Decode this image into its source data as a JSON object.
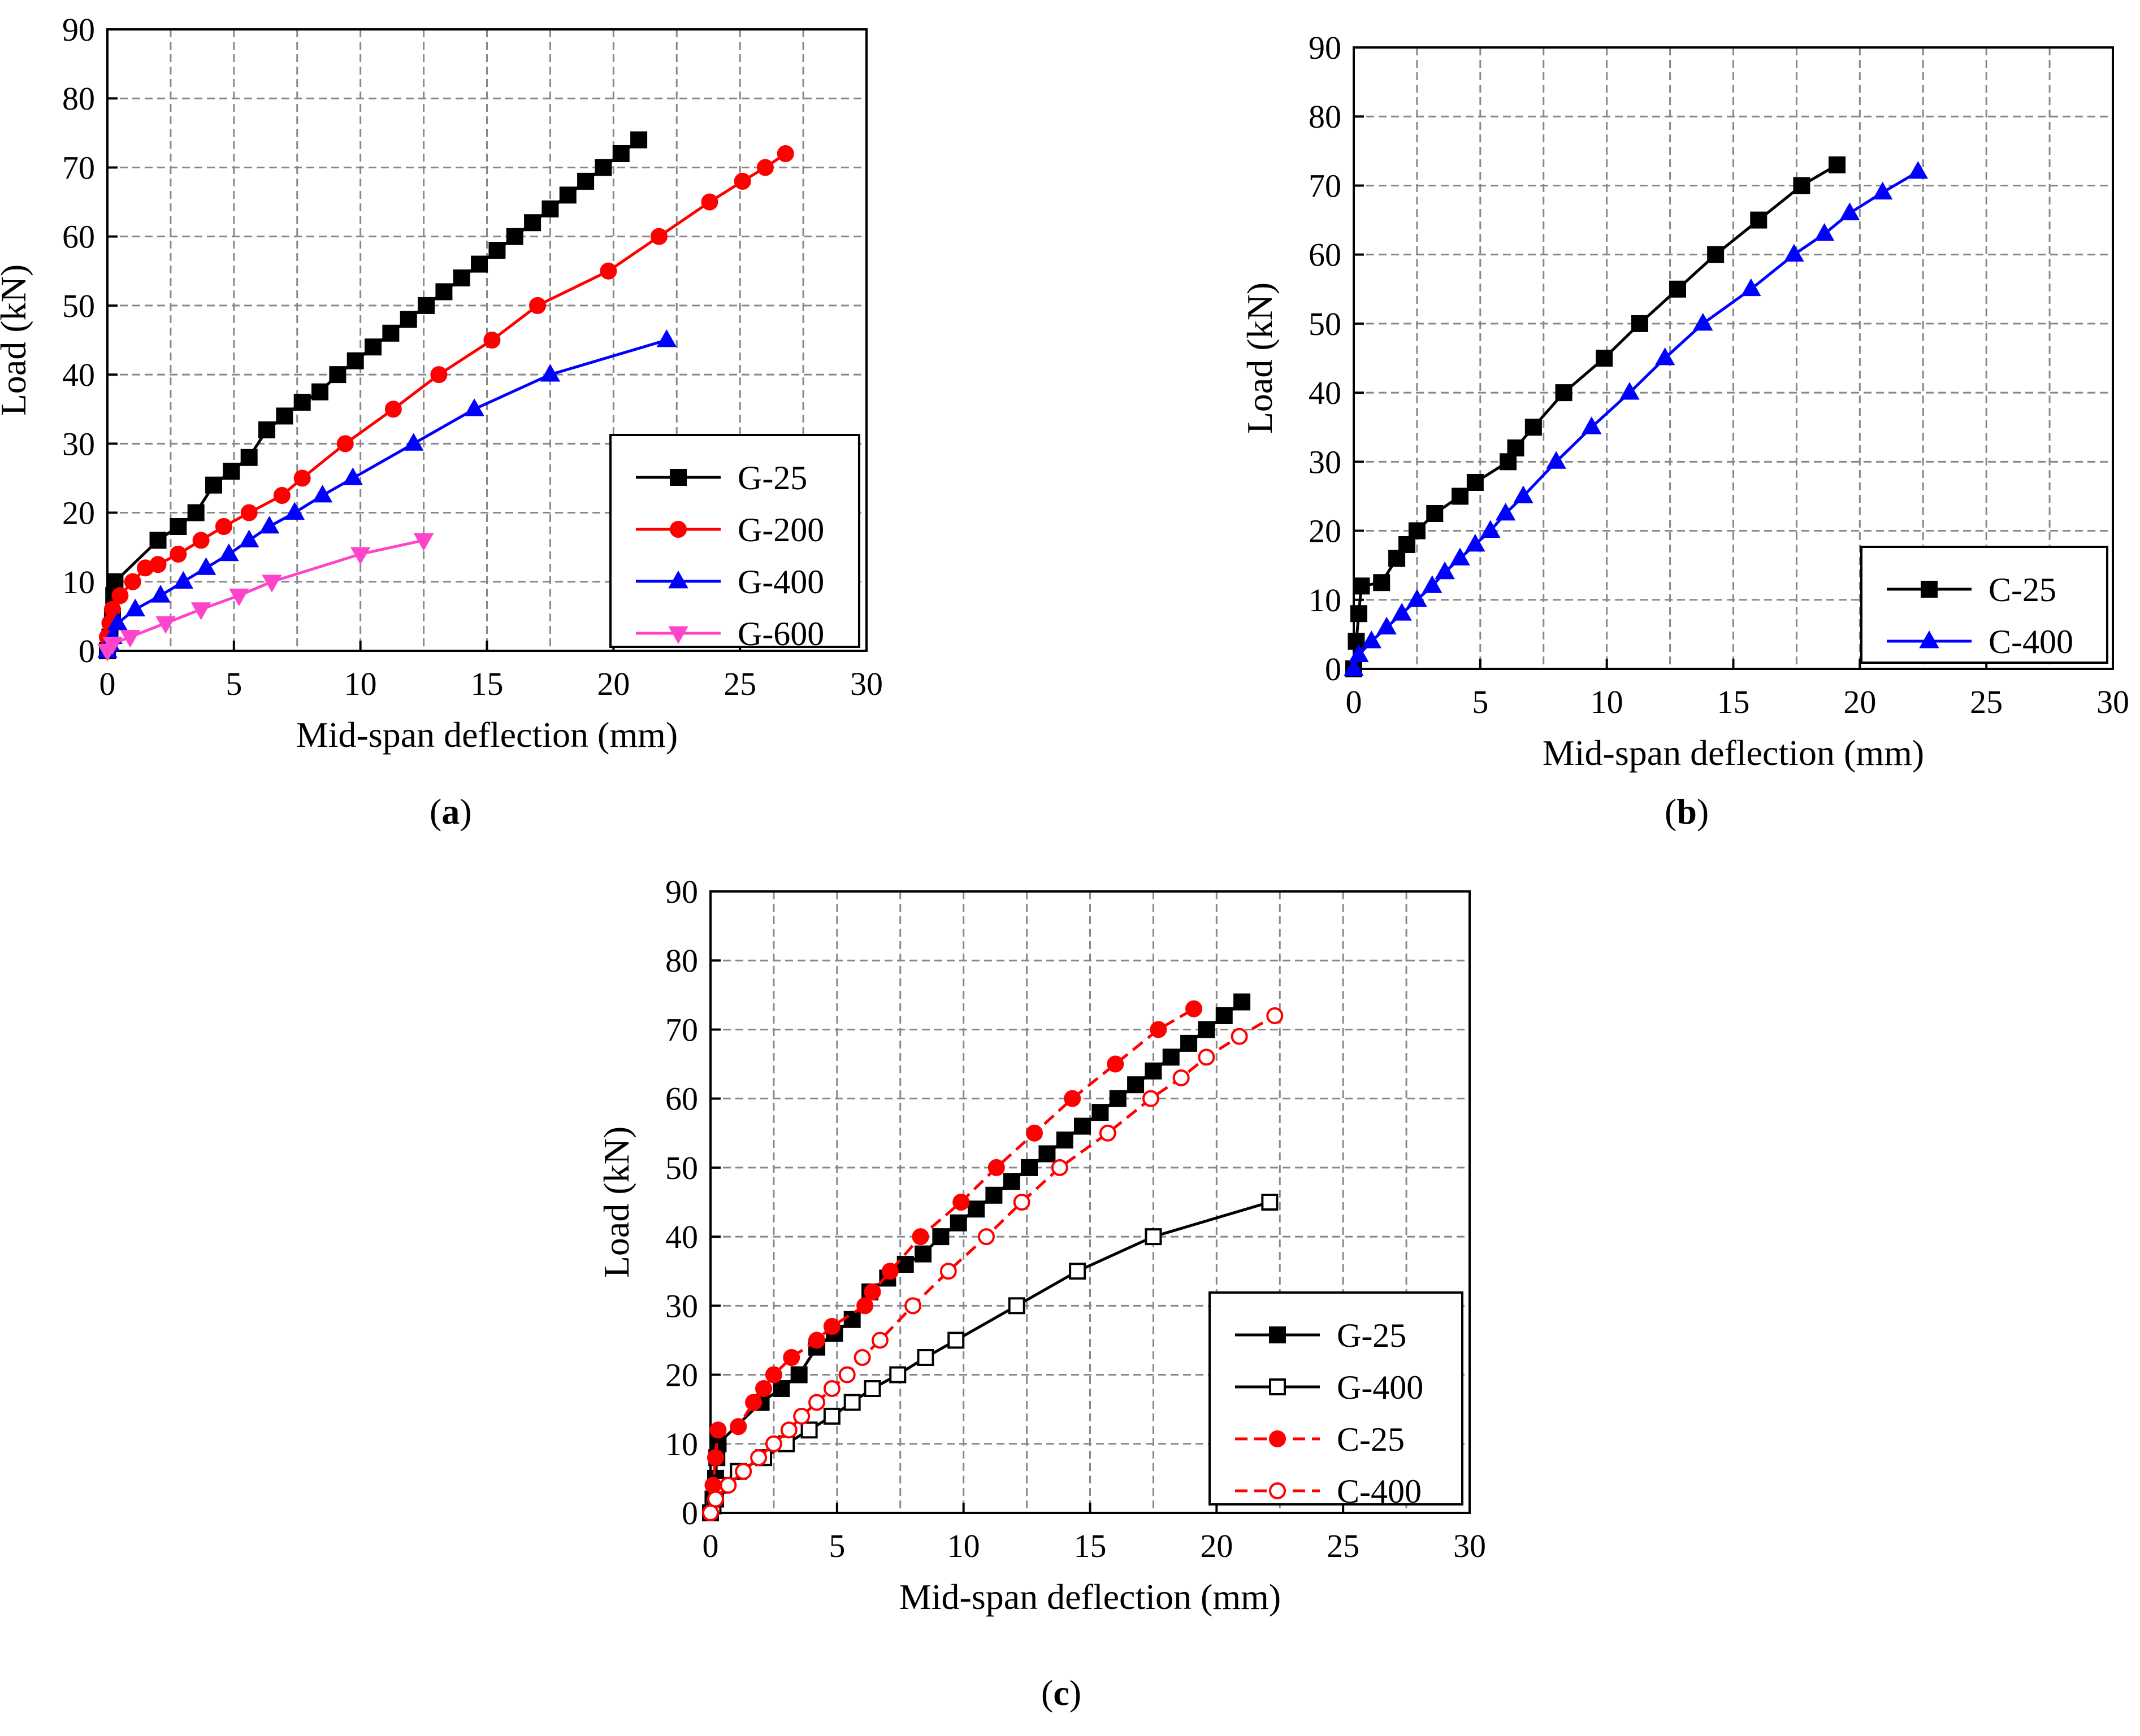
{
  "chart_data": [
    {
      "panel": "a",
      "type": "line",
      "xlabel": "Mid-span deflection (mm)",
      "ylabel": "Load (kN)",
      "xlim": [
        0,
        30
      ],
      "ylim": [
        0,
        90
      ],
      "xticks": [
        "0",
        "5",
        "10",
        "15",
        "20",
        "25",
        "30"
      ],
      "yticks": [
        "0",
        "10",
        "20",
        "30",
        "40",
        "50",
        "60",
        "70",
        "80",
        "90"
      ],
      "grid": true,
      "legend_position": "bottom-right",
      "series": [
        {
          "name": "G-25",
          "color": "#000000",
          "marker": "square",
          "filled": true,
          "dashed": false,
          "x": [
            0,
            0.1,
            0.2,
            0.25,
            0.3,
            2.0,
            2.8,
            3.5,
            4.2,
            4.9,
            5.6,
            6.3,
            7.0,
            7.7,
            8.4,
            9.1,
            9.8,
            10.5,
            11.2,
            11.9,
            12.6,
            13.3,
            14.0,
            14.7,
            15.4,
            16.1,
            16.8,
            17.5,
            18.2,
            18.9,
            19.6,
            20.3,
            21.0
          ],
          "y": [
            0,
            2,
            5,
            8,
            10,
            16,
            18,
            20,
            24,
            26,
            28,
            32,
            34,
            36,
            37.5,
            40,
            42,
            44,
            46,
            48,
            50,
            52,
            54,
            56,
            58,
            60,
            62,
            64,
            66,
            68,
            70,
            72,
            74
          ]
        },
        {
          "name": "G-200",
          "color": "#ff0000",
          "marker": "circle",
          "filled": true,
          "dashed": false,
          "x": [
            0,
            0.1,
            0.2,
            0.5,
            1.0,
            1.5,
            2.0,
            2.8,
            3.7,
            4.6,
            5.6,
            6.9,
            7.7,
            9.4,
            11.3,
            13.1,
            15.2,
            17.0,
            19.8,
            21.8,
            23.8,
            25.1,
            26.0,
            26.8
          ],
          "y": [
            2,
            4,
            6,
            8,
            10,
            12,
            12.5,
            14,
            16,
            18,
            20,
            22.5,
            25,
            30,
            35,
            40,
            45,
            50,
            55,
            60,
            65,
            68,
            70,
            72
          ]
        },
        {
          "name": "G-400",
          "color": "#0000ff",
          "marker": "triangle-up",
          "filled": true,
          "dashed": false,
          "x": [
            0,
            0.1,
            0.2,
            0.4,
            1.1,
            2.1,
            3.0,
            3.9,
            4.8,
            5.6,
            6.4,
            7.4,
            8.5,
            9.7,
            12.1,
            14.5,
            17.5,
            22.1
          ],
          "y": [
            0,
            1,
            2,
            4,
            6,
            8,
            10,
            12,
            14,
            16,
            18,
            20,
            22.5,
            25,
            30,
            35,
            40,
            45
          ]
        },
        {
          "name": "G-600",
          "color": "#ff44cc",
          "marker": "triangle-down",
          "filled": true,
          "dashed": false,
          "x": [
            0,
            0.2,
            0.9,
            2.3,
            3.7,
            5.2,
            6.5,
            10.0,
            12.5
          ],
          "y": [
            0,
            1,
            2,
            4,
            6,
            8,
            10,
            14,
            16
          ]
        }
      ]
    },
    {
      "panel": "b",
      "type": "line",
      "xlabel": "Mid-span deflection (mm)",
      "ylabel": "Load (kN)",
      "xlim": [
        0,
        30
      ],
      "ylim": [
        0,
        90
      ],
      "xticks": [
        "0",
        "5",
        "10",
        "15",
        "20",
        "25",
        "30"
      ],
      "yticks": [
        "0",
        "10",
        "20",
        "30",
        "40",
        "50",
        "60",
        "70",
        "80",
        "90"
      ],
      "grid": true,
      "legend_position": "bottom-right",
      "series": [
        {
          "name": "C-25",
          "color": "#000000",
          "marker": "square",
          "filled": true,
          "dashed": false,
          "x": [
            0,
            0.1,
            0.2,
            0.3,
            1.1,
            1.7,
            2.1,
            2.5,
            3.2,
            4.2,
            4.8,
            6.1,
            6.4,
            7.1,
            8.3,
            9.9,
            11.3,
            12.8,
            14.3,
            16.0,
            17.7,
            19.1
          ],
          "y": [
            0,
            4,
            8,
            12,
            12.5,
            16,
            18,
            20,
            22.5,
            25,
            27,
            30,
            32,
            35,
            40,
            45,
            50,
            55,
            60,
            65,
            70,
            73
          ]
        },
        {
          "name": "C-400",
          "color": "#0000ff",
          "marker": "triangle-up",
          "filled": true,
          "dashed": false,
          "x": [
            0,
            0.2,
            0.7,
            1.3,
            1.9,
            2.5,
            3.1,
            3.6,
            4.2,
            4.8,
            5.4,
            6.0,
            6.7,
            8.0,
            9.4,
            10.9,
            12.3,
            13.8,
            15.7,
            17.4,
            18.6,
            19.6,
            20.9,
            22.3
          ],
          "y": [
            0,
            2,
            4,
            6,
            8,
            10,
            12,
            14,
            16,
            18,
            20,
            22.5,
            25,
            30,
            35,
            40,
            45,
            50,
            55,
            60,
            63,
            66,
            69,
            72
          ]
        }
      ]
    },
    {
      "panel": "c",
      "type": "line",
      "xlabel": "Mid-span deflection (mm)",
      "ylabel": "Load (kN)",
      "xlim": [
        0,
        30
      ],
      "ylim": [
        0,
        90
      ],
      "xticks": [
        "0",
        "5",
        "10",
        "15",
        "20",
        "25",
        "30"
      ],
      "yticks": [
        "0",
        "10",
        "20",
        "30",
        "40",
        "50",
        "60",
        "70",
        "80",
        "90"
      ],
      "grid": true,
      "legend_position": "bottom-right",
      "series": [
        {
          "name": "G-25",
          "color": "#000000",
          "marker": "square",
          "filled": true,
          "dashed": false,
          "x": [
            0,
            0.1,
            0.2,
            0.25,
            0.3,
            2.0,
            2.8,
            3.5,
            4.2,
            4.9,
            5.6,
            6.3,
            7.0,
            7.7,
            8.4,
            9.1,
            9.8,
            10.5,
            11.2,
            11.9,
            12.6,
            13.3,
            14.0,
            14.7,
            15.4,
            16.1,
            16.8,
            17.5,
            18.2,
            18.9,
            19.6,
            20.3,
            21.0
          ],
          "y": [
            0,
            2,
            5,
            8,
            10,
            16,
            18,
            20,
            24,
            26,
            28,
            32,
            34,
            36,
            37.5,
            40,
            42,
            44,
            46,
            48,
            50,
            52,
            54,
            56,
            58,
            60,
            62,
            64,
            66,
            68,
            70,
            72,
            74
          ]
        },
        {
          "name": "G-400",
          "color": "#000000",
          "marker": "square",
          "filled": false,
          "dashed": false,
          "x": [
            0,
            0.1,
            0.2,
            0.4,
            1.1,
            2.1,
            3.0,
            3.9,
            4.8,
            5.6,
            6.4,
            7.4,
            8.5,
            9.7,
            12.1,
            14.5,
            17.5,
            22.1
          ],
          "y": [
            0,
            1,
            2,
            4,
            6,
            8,
            10,
            12,
            14,
            16,
            18,
            20,
            22.5,
            25,
            30,
            35,
            40,
            45
          ]
        },
        {
          "name": "C-25",
          "color": "#ff0000",
          "marker": "circle",
          "filled": true,
          "dashed": true,
          "x": [
            0,
            0.1,
            0.2,
            0.3,
            1.1,
            1.7,
            2.1,
            2.5,
            3.2,
            4.2,
            4.8,
            6.1,
            6.4,
            7.1,
            8.3,
            9.9,
            11.3,
            12.8,
            14.3,
            16.0,
            17.7,
            19.1
          ],
          "y": [
            0,
            4,
            8,
            12,
            12.5,
            16,
            18,
            20,
            22.5,
            25,
            27,
            30,
            32,
            35,
            40,
            45,
            50,
            55,
            60,
            65,
            70,
            73
          ]
        },
        {
          "name": "C-400",
          "color": "#ff0000",
          "marker": "circle",
          "filled": false,
          "dashed": true,
          "x": [
            0,
            0.2,
            0.7,
            1.3,
            1.9,
            2.5,
            3.1,
            3.6,
            4.2,
            4.8,
            5.4,
            6.0,
            6.7,
            8.0,
            9.4,
            10.9,
            12.3,
            13.8,
            15.7,
            17.4,
            18.6,
            19.6,
            20.9,
            22.3
          ],
          "y": [
            0,
            2,
            4,
            6,
            8,
            10,
            12,
            14,
            16,
            18,
            20,
            22.5,
            25,
            30,
            35,
            40,
            45,
            50,
            55,
            60,
            63,
            66,
            69,
            72
          ]
        }
      ]
    }
  ],
  "captions": [
    "a",
    "b",
    "c"
  ]
}
